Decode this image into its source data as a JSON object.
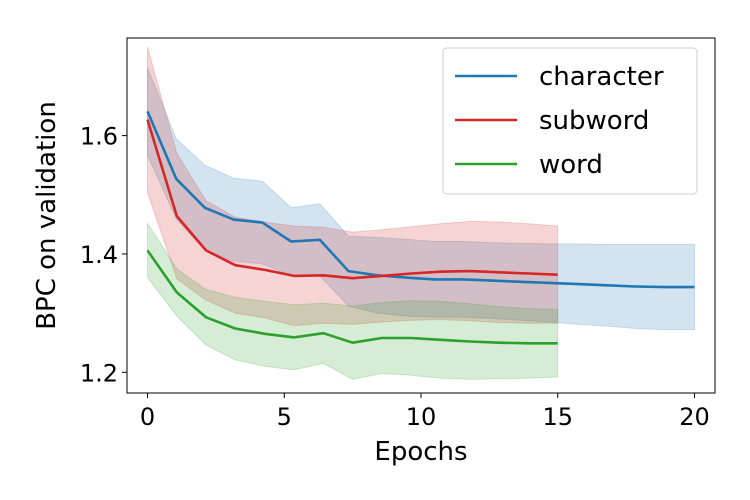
{
  "chart_data": {
    "type": "line",
    "title": "",
    "xlabel": "Epochs",
    "ylabel": "BPC on validation",
    "xlim": [
      -0.75,
      20.75
    ],
    "ylim": [
      1.165,
      1.765
    ],
    "xticks": [
      0,
      5,
      10,
      15,
      20
    ],
    "yticks": [
      1.2,
      1.4,
      1.6
    ],
    "xtick_labels": [
      "0",
      "5",
      "10",
      "15",
      "20"
    ],
    "ytick_labels": [
      "1.2",
      "1.4",
      "1.6"
    ],
    "grid": false,
    "legend_position": "top-right",
    "series": [
      {
        "name": "character",
        "color": "#1f77b4",
        "x": [
          0,
          1.05,
          2.1,
          3.15,
          4.2,
          5.25,
          6.3,
          7.35,
          8.4,
          9.45,
          10.5,
          11.55,
          12.6,
          13.65,
          14.7,
          15.75,
          16.8,
          17.85,
          18.9,
          20
        ],
        "y": [
          1.641,
          1.527,
          1.478,
          1.458,
          1.453,
          1.421,
          1.424,
          1.371,
          1.364,
          1.36,
          1.357,
          1.357,
          1.355,
          1.353,
          1.351,
          1.349,
          1.347,
          1.345,
          1.344,
          1.344
        ],
        "upper": [
          1.715,
          1.595,
          1.55,
          1.528,
          1.523,
          1.478,
          1.485,
          1.43,
          1.428,
          1.425,
          1.421,
          1.421,
          1.419,
          1.418,
          1.417,
          1.417,
          1.416,
          1.416,
          1.416,
          1.416
        ],
        "lower": [
          1.567,
          1.459,
          1.406,
          1.388,
          1.383,
          1.364,
          1.363,
          1.312,
          1.3,
          1.295,
          1.293,
          1.293,
          1.291,
          1.288,
          1.285,
          1.281,
          1.278,
          1.274,
          1.272,
          1.272
        ]
      },
      {
        "name": "subword",
        "color": "#d62728",
        "x": [
          0,
          1.07,
          2.14,
          3.21,
          4.29,
          5.36,
          6.43,
          7.5,
          8.57,
          9.64,
          10.71,
          11.79,
          12.86,
          13.93,
          15
        ],
        "y": [
          1.627,
          1.464,
          1.406,
          1.381,
          1.373,
          1.363,
          1.364,
          1.359,
          1.363,
          1.367,
          1.37,
          1.371,
          1.369,
          1.367,
          1.365
        ],
        "upper": [
          1.75,
          1.57,
          1.49,
          1.462,
          1.454,
          1.447,
          1.445,
          1.437,
          1.441,
          1.446,
          1.451,
          1.455,
          1.454,
          1.451,
          1.447
        ],
        "lower": [
          1.504,
          1.358,
          1.322,
          1.3,
          1.292,
          1.279,
          1.283,
          1.281,
          1.285,
          1.288,
          1.289,
          1.287,
          1.284,
          1.283,
          1.283
        ]
      },
      {
        "name": "word",
        "color": "#2ca02c",
        "x": [
          0,
          1.07,
          2.14,
          3.21,
          4.29,
          5.36,
          6.43,
          7.5,
          8.57,
          9.64,
          10.71,
          11.79,
          12.86,
          13.93,
          15
        ],
        "y": [
          1.406,
          1.335,
          1.293,
          1.274,
          1.265,
          1.259,
          1.266,
          1.25,
          1.258,
          1.258,
          1.255,
          1.252,
          1.25,
          1.249,
          1.249
        ],
        "upper": [
          1.452,
          1.375,
          1.34,
          1.327,
          1.32,
          1.314,
          1.317,
          1.312,
          1.318,
          1.321,
          1.32,
          1.316,
          1.311,
          1.308,
          1.306
        ],
        "lower": [
          1.36,
          1.295,
          1.246,
          1.221,
          1.21,
          1.204,
          1.215,
          1.188,
          1.198,
          1.195,
          1.19,
          1.188,
          1.189,
          1.19,
          1.192
        ]
      }
    ]
  }
}
